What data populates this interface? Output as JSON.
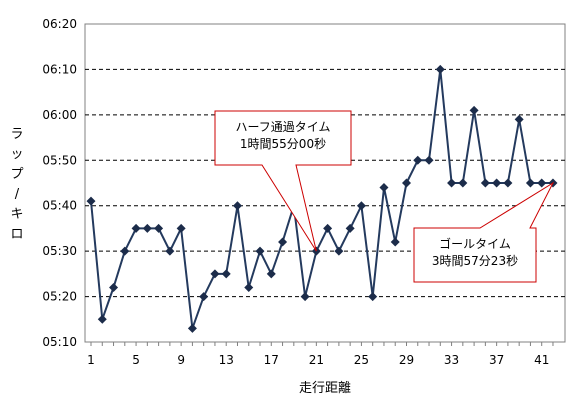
{
  "chart_data": {
    "type": "line",
    "xlabel": "走行距離",
    "ylabel": "ラップ/キロ",
    "x": [
      1,
      2,
      3,
      4,
      5,
      6,
      7,
      8,
      9,
      10,
      11,
      12,
      13,
      14,
      15,
      16,
      17,
      18,
      19,
      20,
      21,
      22,
      23,
      24,
      25,
      26,
      27,
      28,
      29,
      30,
      31,
      32,
      33,
      34,
      35,
      36,
      37,
      38,
      39,
      40,
      41,
      42
    ],
    "series": [
      {
        "values": [
          "05:41",
          "05:15",
          "05:22",
          "05:30",
          "05:35",
          "05:35",
          "05:35",
          "05:30",
          "05:35",
          "05:13",
          "05:20",
          "05:25",
          "05:25",
          "05:40",
          "05:22",
          "05:30",
          "05:25",
          "05:32",
          "05:40",
          "05:20",
          "05:30",
          "05:35",
          "05:30",
          "05:35",
          "05:40",
          "05:20",
          "05:44",
          "05:32",
          "05:45",
          "05:50",
          "05:50",
          "06:10",
          "05:45",
          "05:45",
          "06:01",
          "05:45",
          "05:45",
          "05:45",
          "05:59",
          "05:45",
          "05:45",
          "05:45"
        ],
        "color": "#243a5e"
      }
    ],
    "x_ticks": [
      "1",
      "5",
      "9",
      "13",
      "17",
      "21",
      "25",
      "29",
      "33",
      "37",
      "41"
    ],
    "y_ticks": [
      "05:10",
      "05:20",
      "05:30",
      "05:40",
      "05:50",
      "06:00",
      "06:10",
      "06:20"
    ],
    "ylim": [
      "05:10",
      "06:20"
    ],
    "xlim": [
      1,
      42
    ],
    "grid": "horizontal-dashed",
    "plot_background": "#ffffff",
    "annotations": [
      {
        "lines": [
          "ハーフ通過タイム",
          "1時間55分00秒"
        ],
        "target_x": 21
      },
      {
        "lines": [
          "ゴールタイム",
          "3時間57分23秒"
        ],
        "target_x": 42
      }
    ],
    "callout_border_color": "#cc0000"
  }
}
